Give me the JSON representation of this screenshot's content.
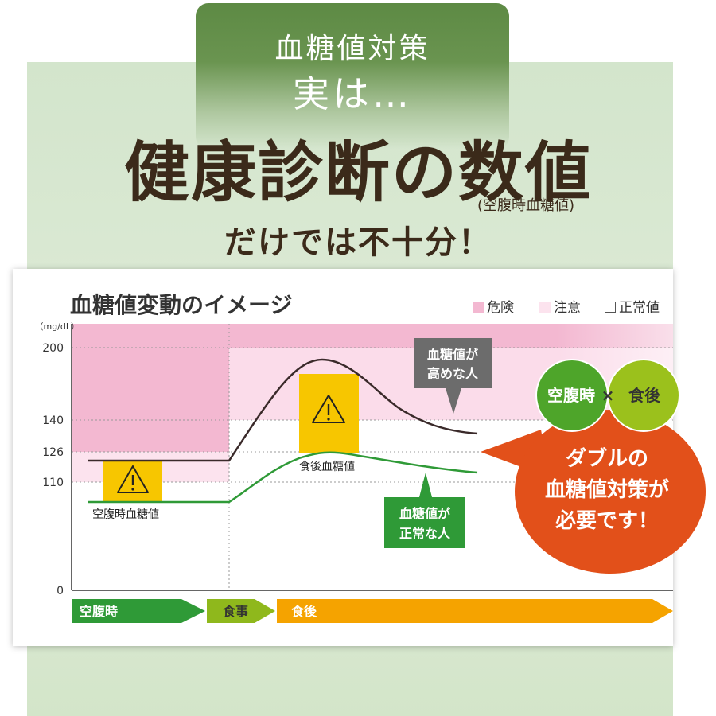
{
  "banner": {
    "line1": "血糖値対策",
    "line2": "実は…"
  },
  "headline": "健康診断の数値",
  "subnote": "(空腹時血糖値)",
  "subheadline": "だけでは不十分！",
  "colors": {
    "danger": "#f3b8d1",
    "caution": "#fce3ee",
    "normal": "#ffffff",
    "high_line": "#3a2a2a",
    "normal_line": "#2f9a37",
    "warning_box": "#f7c600",
    "callout": "#e2501a",
    "green_circle": "#4ea52a",
    "lime_circle": "#9bc11c"
  },
  "chart_data": {
    "type": "line",
    "title": "血糖値変動のイメージ",
    "ylabel": "（mg/dL）",
    "yticks": [
      0,
      110,
      126,
      140,
      200
    ],
    "ylim": [
      0,
      210
    ],
    "legend": [
      "危険",
      "注意",
      "正常値"
    ],
    "bands": [
      {
        "name": "危険",
        "from": 126,
        "to": 210
      },
      {
        "name": "注意",
        "from": 110,
        "to": 126
      }
    ],
    "phases": [
      "空腹時",
      "食事",
      "食後"
    ],
    "series": [
      {
        "name": "血糖値が高めな人",
        "points": [
          [
            0.05,
            120
          ],
          [
            0.28,
            120
          ],
          [
            0.45,
            190
          ],
          [
            0.7,
            132
          ]
        ]
      },
      {
        "name": "血糖値が正常な人",
        "points": [
          [
            0.05,
            97
          ],
          [
            0.28,
            97
          ],
          [
            0.42,
            115
          ],
          [
            0.7,
            108
          ]
        ]
      }
    ],
    "annotations": {
      "fasting": "空腹時血糖値",
      "postprandial": "食後血糖値",
      "high_label": [
        "血糖値が",
        "高めな人"
      ],
      "normal_label": [
        "血糖値が",
        "正常な人"
      ]
    }
  },
  "callout": {
    "left_circle": "空腹時",
    "times": "×",
    "right_circle": "食後",
    "lines": [
      "ダブルの",
      "血糖値対策が",
      "必要です！"
    ]
  }
}
